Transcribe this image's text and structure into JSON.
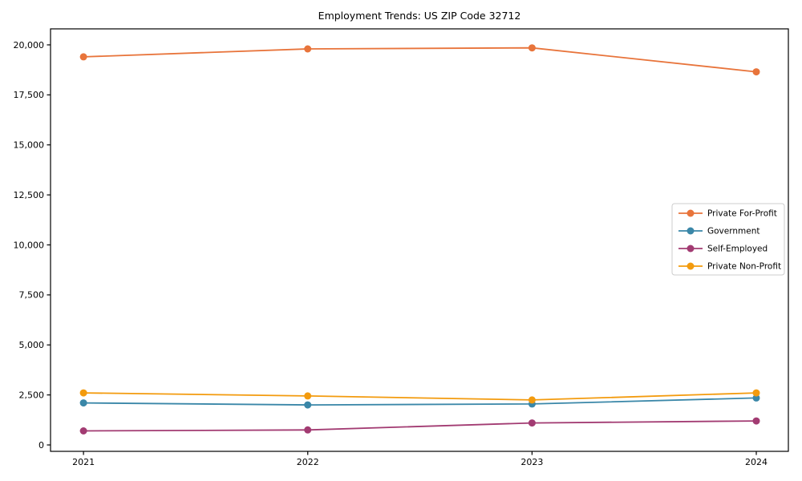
{
  "title": "Employment Trends: US ZIP Code 32712",
  "chart_data": {
    "type": "line",
    "title": "Employment Trends: US ZIP Code 32712",
    "xlabel": "",
    "ylabel": "",
    "categories": [
      "2021",
      "2022",
      "2023",
      "2024"
    ],
    "series": [
      {
        "name": "Private For-Profit",
        "color": "#e8743b",
        "values": [
          19400,
          19800,
          19850,
          18650
        ]
      },
      {
        "name": "Government",
        "color": "#3a87a8",
        "values": [
          2100,
          2000,
          2050,
          2350
        ]
      },
      {
        "name": "Self-Employed",
        "color": "#a23b72",
        "values": [
          700,
          750,
          1100,
          1200
        ]
      },
      {
        "name": "Private Non-Profit",
        "color": "#f39b0e",
        "values": [
          2600,
          2450,
          2250,
          2600
        ]
      }
    ],
    "yticks": [
      0,
      2500,
      5000,
      7500,
      10000,
      12500,
      15000,
      17500,
      20000
    ],
    "ytick_labels": [
      "0",
      "2,500",
      "5,000",
      "7,500",
      "10,000",
      "12,500",
      "15,000",
      "17,500",
      "20,000"
    ],
    "ylim": [
      -320,
      20800
    ],
    "xlim": [
      -0.147,
      3.143
    ],
    "grid": false,
    "legend_position": "center right",
    "marker": "circle",
    "axis_color": "#000000",
    "legend_border_color": "#cccccc",
    "legend_background": "#ffffff"
  }
}
